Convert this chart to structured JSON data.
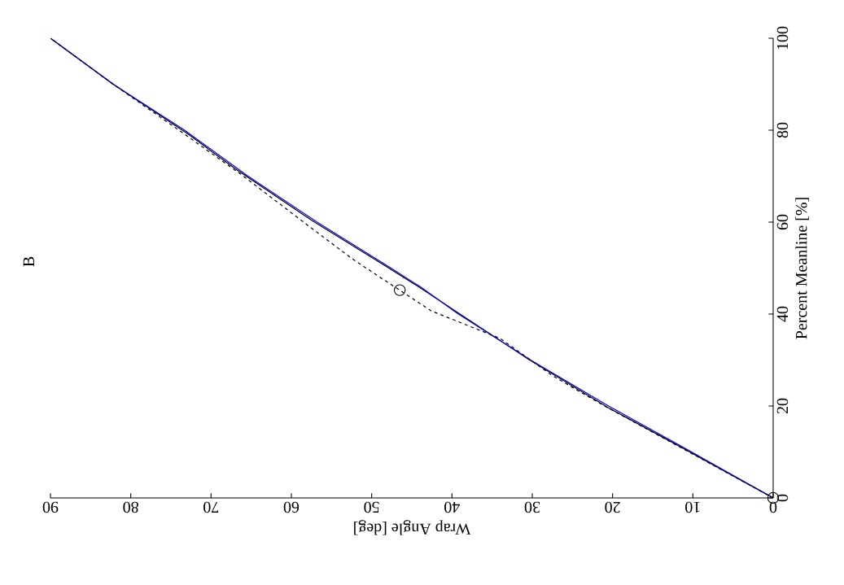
{
  "chart_data": {
    "type": "line",
    "title": "B",
    "xlabel": "Wrap Angle [deg]",
    "ylabel": "Percent Meanline [%]",
    "xlim": [
      90,
      0
    ],
    "ylim": [
      0,
      100
    ],
    "xticks": [
      0,
      10,
      20,
      30,
      40,
      50,
      60,
      70,
      80,
      90
    ],
    "yticks": [
      0,
      20,
      40,
      60,
      80,
      100
    ],
    "grid": false,
    "series": [
      {
        "color": "#000000",
        "line_style": "solid",
        "x": [
          0,
          11.4,
          20.3,
          30.4,
          44.3,
          48.3,
          57.4,
          66.9,
          72.9,
          82.1,
          90
        ],
        "values": [
          0,
          11,
          19.4,
          30.1,
          46.1,
          50.5,
          60.3,
          71.5,
          79.2,
          89.9,
          100
        ]
      },
      {
        "color": "#0000ff",
        "line_style": "solid",
        "x": [
          0,
          11.2,
          20.5,
          30.2,
          39.2,
          44,
          47.6,
          56.8,
          65.4,
          73.3,
          82.2,
          90
        ],
        "values": [
          0,
          11,
          20,
          30,
          40,
          46,
          50,
          60,
          70,
          80,
          90,
          100
        ]
      },
      {
        "color": "#000000",
        "line_style": "dashed",
        "x": [
          0,
          10.5,
          21,
          27.4,
          34,
          42.6,
          46.5,
          49.3,
          52.4,
          57.8,
          66.2,
          74,
          82.2,
          90
        ],
        "values": [
          0,
          10,
          20,
          26.5,
          34.7,
          40.7,
          45.2,
          48.4,
          52,
          59.1,
          70.3,
          80,
          90,
          100
        ]
      },
      {
        "type": "scatter",
        "color": "#000000",
        "marker": "circle",
        "x": [
          0,
          46.5
        ],
        "values": [
          0,
          45.2
        ]
      }
    ]
  }
}
